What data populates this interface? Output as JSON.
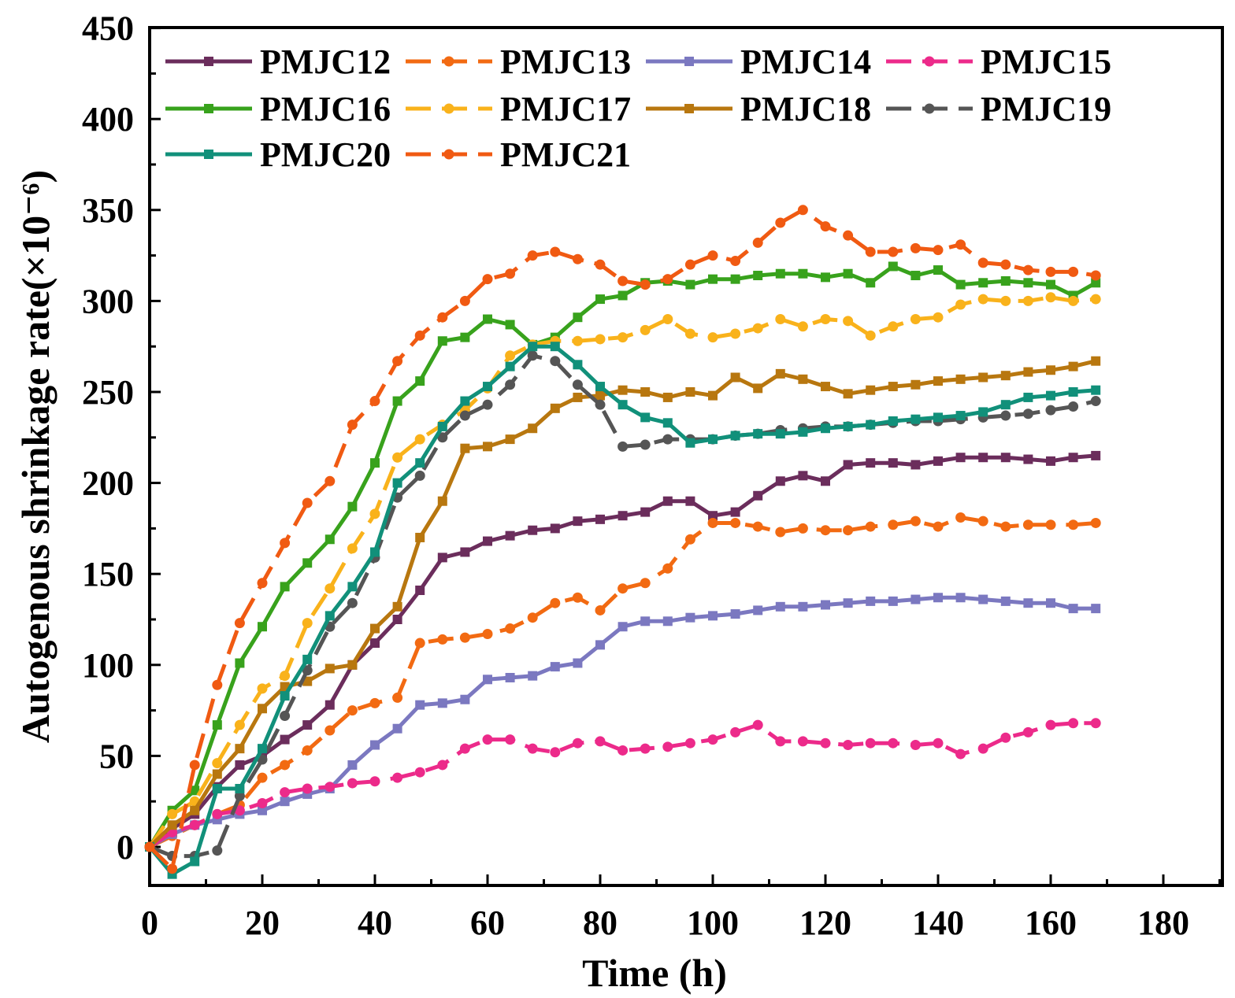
{
  "chart_data": {
    "type": "line",
    "title": "",
    "xlabel": "Time (h)",
    "ylabel": "Autogenous shrinkage rate(×10⁻⁶)",
    "xlim": [
      0,
      190
    ],
    "ylim": [
      -20,
      450
    ],
    "xticks": [
      0,
      20,
      40,
      60,
      80,
      100,
      120,
      140,
      160,
      180
    ],
    "yticks": [
      0,
      50,
      100,
      150,
      200,
      250,
      300,
      350,
      400,
      450
    ],
    "x": [
      0,
      4,
      8,
      12,
      16,
      20,
      24,
      28,
      32,
      36,
      40,
      44,
      48,
      52,
      56,
      60,
      64,
      68,
      72,
      76,
      80,
      84,
      88,
      92,
      96,
      100,
      104,
      108,
      112,
      116,
      120,
      124,
      128,
      132,
      136,
      140,
      144,
      148,
      152,
      156,
      160,
      164,
      168
    ],
    "legend_position": "top-left",
    "series": [
      {
        "name": "PMJC12",
        "color": "#6b2d5c",
        "style": "solid",
        "marker": "square",
        "values": [
          0,
          10,
          18,
          33,
          45,
          50,
          59,
          67,
          78,
          100,
          112,
          125,
          141,
          159,
          162,
          168,
          171,
          174,
          175,
          179,
          180,
          182,
          184,
          190,
          190,
          182,
          184,
          193,
          201,
          204,
          201,
          210,
          211,
          211,
          210,
          212,
          214,
          214,
          214,
          213,
          212,
          214,
          215
        ]
      },
      {
        "name": "PMJC13",
        "color": "#f26a12",
        "style": "dashed",
        "marker": "circle",
        "values": [
          0,
          6,
          12,
          18,
          23,
          38,
          45,
          53,
          64,
          75,
          79,
          82,
          112,
          114,
          115,
          117,
          120,
          126,
          134,
          137,
          130,
          142,
          145,
          153,
          169,
          178,
          178,
          176,
          173,
          175,
          174,
          174,
          176,
          177,
          179,
          176,
          181,
          179,
          176,
          177,
          177,
          177,
          178
        ]
      },
      {
        "name": "PMJC14",
        "color": "#7b78c0",
        "style": "solid",
        "marker": "square",
        "values": [
          0,
          7,
          12,
          15,
          18,
          20,
          25,
          29,
          32,
          45,
          56,
          65,
          78,
          79,
          81,
          92,
          93,
          94,
          99,
          101,
          111,
          121,
          124,
          124,
          126,
          127,
          128,
          130,
          132,
          132,
          133,
          134,
          135,
          135,
          136,
          137,
          137,
          136,
          135,
          134,
          134,
          131,
          131
        ]
      },
      {
        "name": "PMJC15",
        "color": "#ec2a8a",
        "style": "dashed",
        "marker": "circle",
        "values": [
          0,
          8,
          12,
          18,
          20,
          24,
          30,
          32,
          33,
          35,
          36,
          38,
          41,
          45,
          54,
          59,
          59,
          54,
          52,
          57,
          58,
          53,
          54,
          55,
          57,
          59,
          63,
          67,
          58,
          58,
          57,
          56,
          57,
          57,
          56,
          57,
          51,
          54,
          60,
          63,
          67,
          68,
          68
        ]
      },
      {
        "name": "PMJC16",
        "color": "#38a21c",
        "style": "solid",
        "marker": "square",
        "values": [
          0,
          20,
          31,
          67,
          101,
          121,
          143,
          156,
          169,
          187,
          211,
          245,
          256,
          278,
          280,
          290,
          287,
          276,
          280,
          291,
          301,
          303,
          310,
          311,
          309,
          312,
          312,
          314,
          315,
          315,
          313,
          315,
          310,
          319,
          314,
          317,
          309,
          310,
          311,
          310,
          309,
          303,
          310
        ]
      },
      {
        "name": "PMJC17",
        "color": "#f9b21b",
        "style": "dashed",
        "marker": "circle",
        "values": [
          0,
          18,
          25,
          46,
          67,
          87,
          94,
          123,
          142,
          164,
          183,
          214,
          224,
          232,
          240,
          252,
          270,
          276,
          278,
          278,
          279,
          280,
          284,
          290,
          282,
          280,
          282,
          285,
          290,
          286,
          290,
          289,
          281,
          286,
          290,
          291,
          298,
          301,
          300,
          300,
          302,
          300,
          301
        ]
      },
      {
        "name": "PMJC18",
        "color": "#b8770f",
        "style": "solid",
        "marker": "square",
        "values": [
          0,
          12,
          20,
          40,
          54,
          76,
          88,
          91,
          98,
          100,
          120,
          132,
          170,
          190,
          219,
          220,
          224,
          230,
          241,
          247,
          248,
          251,
          250,
          247,
          250,
          248,
          258,
          252,
          260,
          257,
          253,
          249,
          251,
          253,
          254,
          256,
          257,
          258,
          259,
          261,
          262,
          264,
          267
        ]
      },
      {
        "name": "PMJC19",
        "color": "#555555",
        "style": "dashed",
        "marker": "circle",
        "values": [
          0,
          -5,
          -5,
          -2,
          28,
          48,
          72,
          97,
          121,
          134,
          159,
          192,
          204,
          225,
          237,
          243,
          254,
          270,
          267,
          254,
          243,
          220,
          221,
          224,
          224,
          224,
          226,
          227,
          229,
          230,
          231,
          231,
          232,
          233,
          234,
          234,
          235,
          236,
          237,
          238,
          240,
          242,
          245
        ]
      },
      {
        "name": "PMJC20",
        "color": "#11907a",
        "style": "solid",
        "marker": "square",
        "values": [
          0,
          -15,
          -8,
          32,
          32,
          54,
          83,
          103,
          127,
          143,
          162,
          200,
          211,
          231,
          245,
          253,
          264,
          275,
          275,
          265,
          253,
          243,
          236,
          233,
          222,
          224,
          226,
          227,
          227,
          228,
          230,
          231,
          232,
          234,
          235,
          236,
          237,
          239,
          243,
          247,
          248,
          250,
          251
        ]
      },
      {
        "name": "PMJC21",
        "color": "#f05a12",
        "style": "dashed",
        "marker": "circle",
        "values": [
          0,
          -12,
          45,
          89,
          123,
          145,
          167,
          189,
          201,
          232,
          245,
          267,
          281,
          291,
          300,
          312,
          315,
          325,
          327,
          323,
          320,
          311,
          309,
          312,
          320,
          325,
          322,
          332,
          343,
          350,
          341,
          336,
          327,
          327,
          329,
          328,
          331,
          321,
          320,
          317,
          316,
          316,
          314
        ]
      }
    ]
  }
}
